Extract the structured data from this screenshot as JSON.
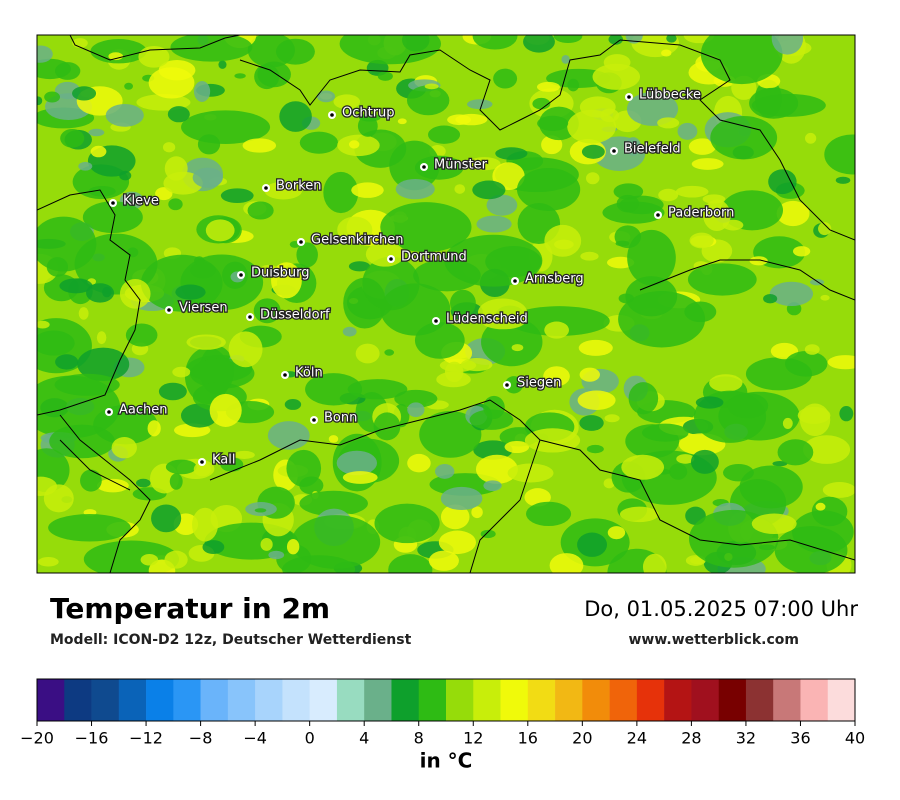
{
  "map": {
    "title": "Temperatur in 2m",
    "subtitle": "Modell: ICON-D2 12z, Deutscher Wetterdienst",
    "datetime": "Do, 01.05.2025 07:00 Uhr",
    "source": "www.wetterblick.com",
    "cities": [
      "Lübbecke",
      "Ochtrup",
      "Bielefeld",
      "Münster",
      "Borken",
      "Kleve",
      "Paderborn",
      "Gelsenkirchen",
      "Dortmund",
      "Duisburg",
      "Arnsberg",
      "Viersen",
      "Düsseldorf",
      "Lüdenscheid",
      "Köln",
      "Siegen",
      "Aachen",
      "Bonn",
      "Kall"
    ]
  },
  "colorbar": {
    "label": "in °C",
    "lim": [
      -20,
      40
    ],
    "ticks": [
      {
        "value": -20,
        "label": "−20"
      },
      {
        "value": -16,
        "label": "−16"
      },
      {
        "value": -12,
        "label": "−12"
      },
      {
        "value": -8,
        "label": "−8"
      },
      {
        "value": -4,
        "label": "−4"
      },
      0,
      4,
      8,
      12,
      16,
      20,
      24,
      28,
      32,
      36,
      40
    ],
    "colors": [
      "#3a0e84",
      "#0d3a82",
      "#0f4a8f",
      "#0a63b8",
      "#0a80e8",
      "#2a96f5",
      "#6ab4fa",
      "#88c4fb",
      "#a8d4fc",
      "#c4e2fd",
      "#d8ecfe",
      "#98dcc0",
      "#6ab08a",
      "#0ea02c",
      "#2ebb14",
      "#96dc0a",
      "#c8ee0a",
      "#f0fa0a",
      "#f2dc14",
      "#f2b814",
      "#f28c0a",
      "#f0640a",
      "#e6320a",
      "#b41414",
      "#a0101e",
      "#780000",
      "#8c3232",
      "#c87878",
      "#fab4b4",
      "#fcdcdc"
    ]
  }
}
